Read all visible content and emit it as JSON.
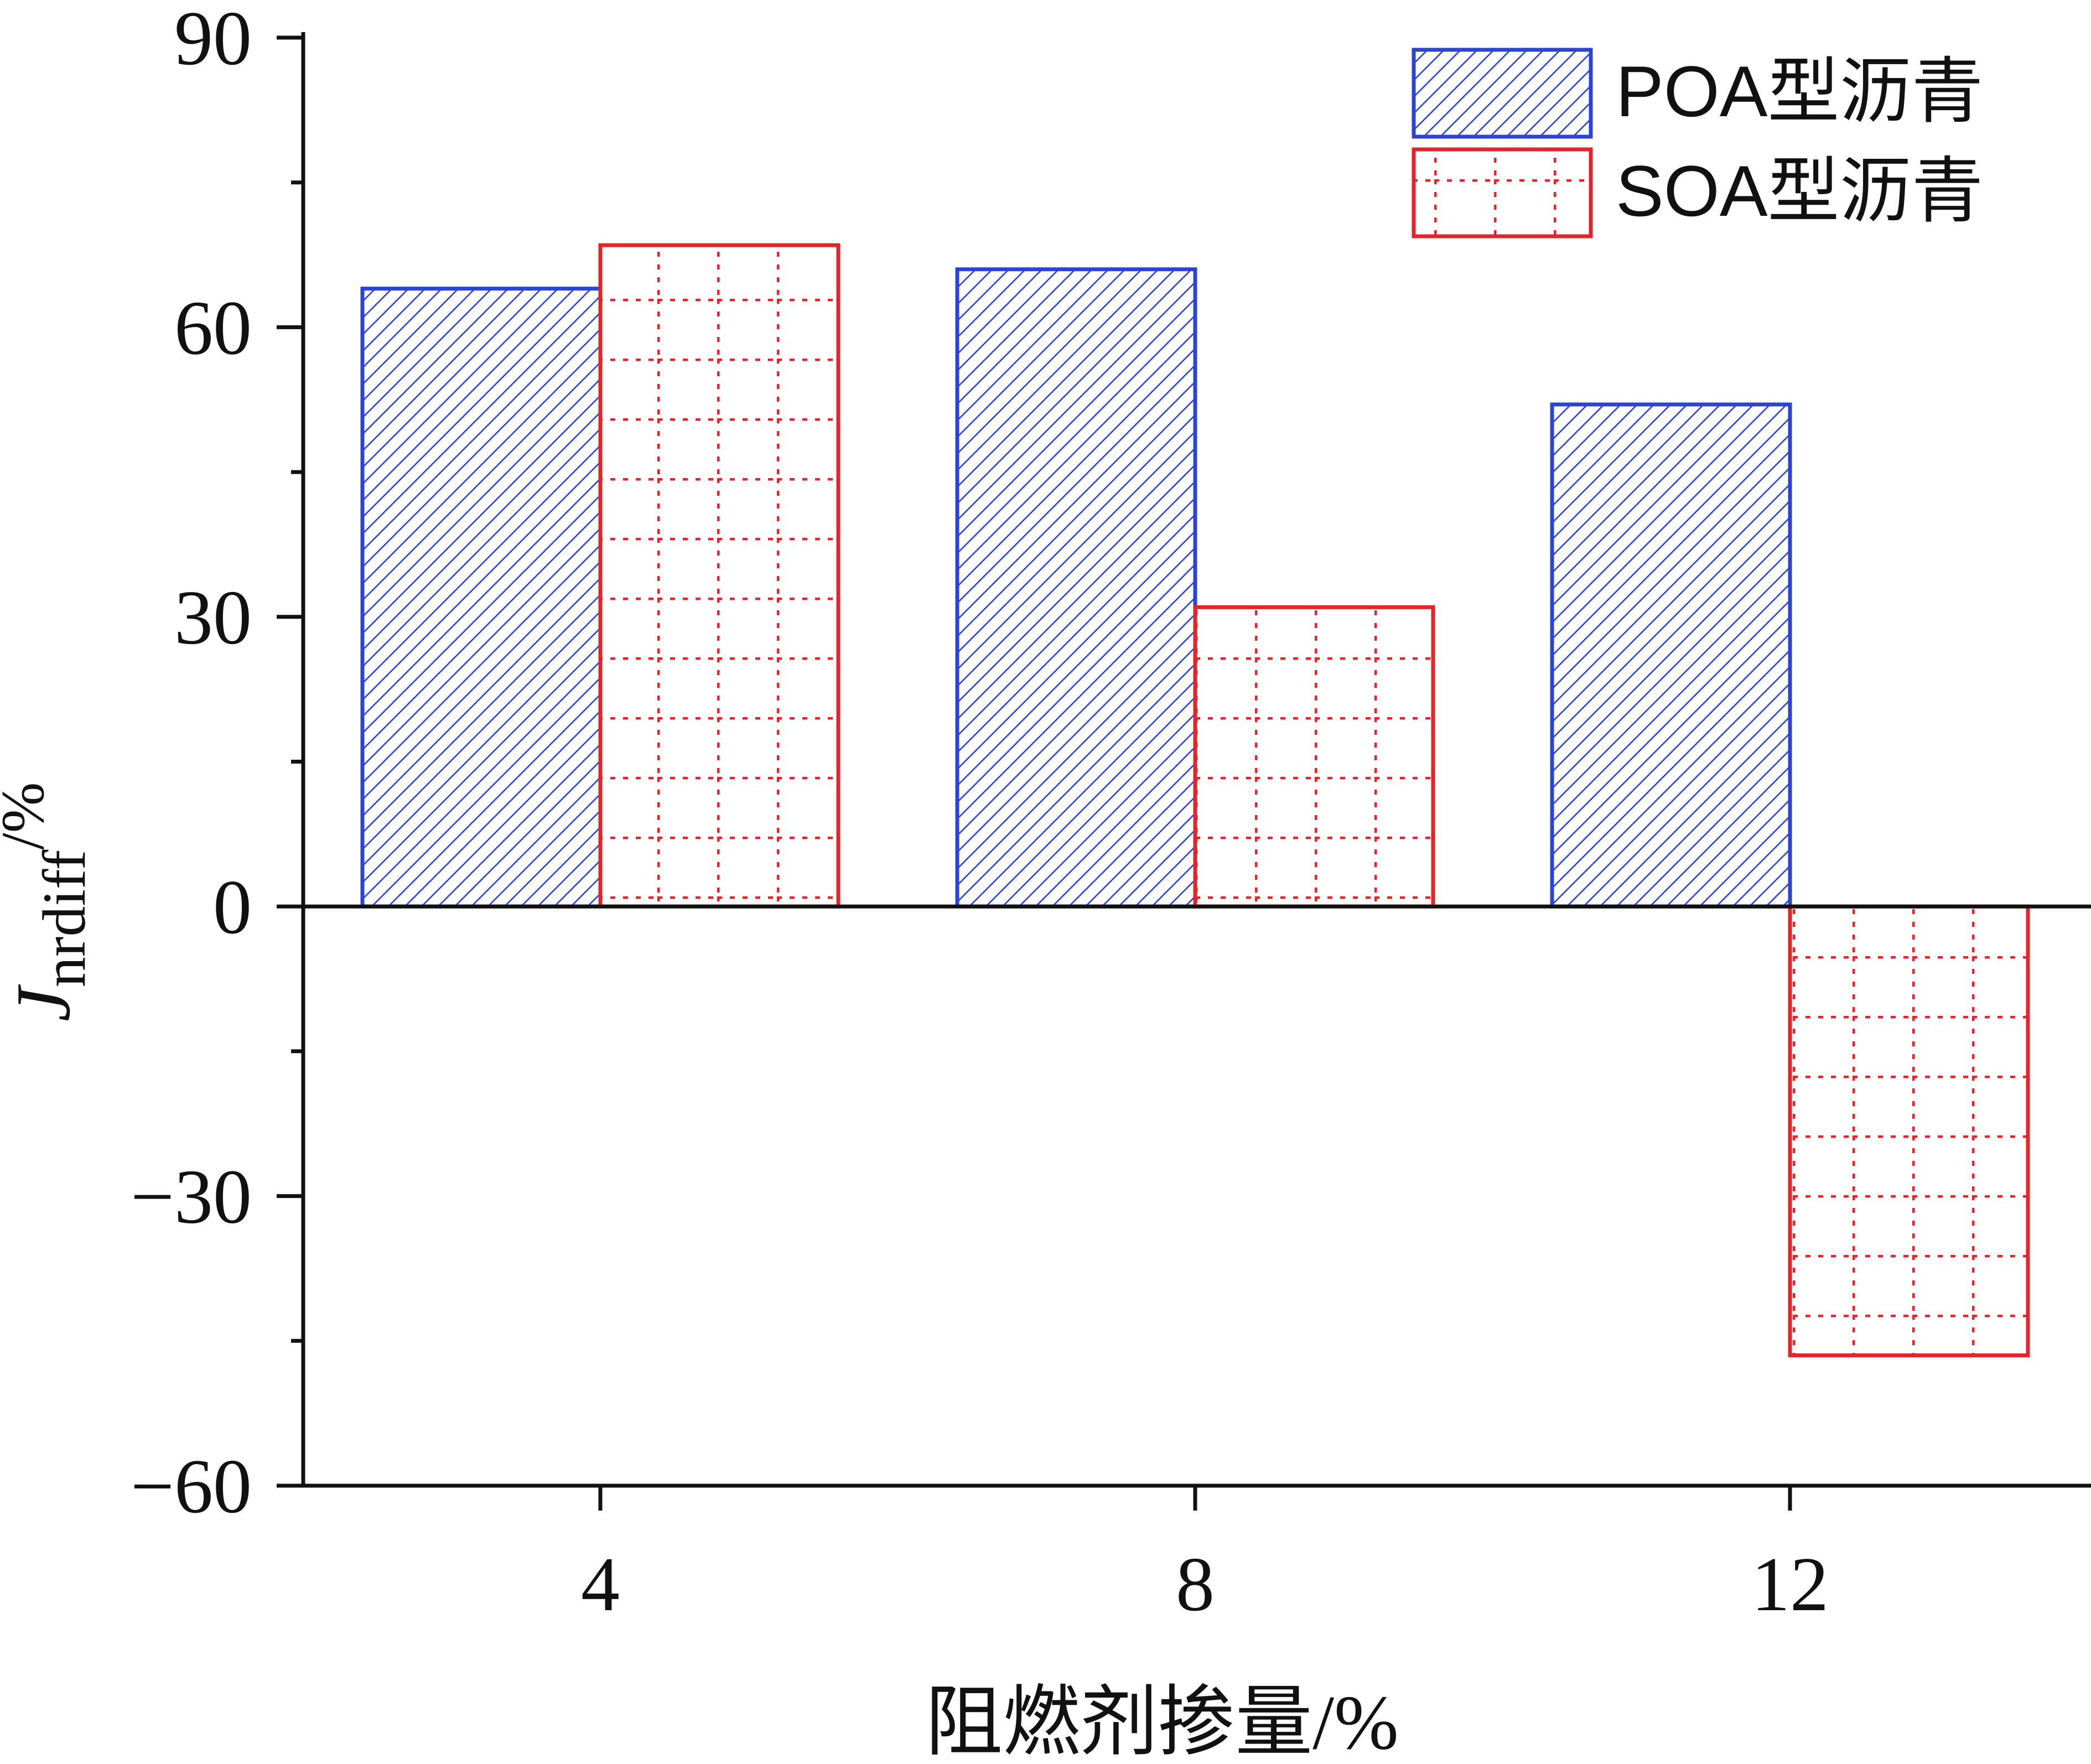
{
  "chart_data": {
    "type": "bar",
    "title": "",
    "xlabel": "阻燃剂掺量/%",
    "ylabel": {
      "main": "J",
      "subscript": "nrdiff",
      "unit": "/%"
    },
    "categories": [
      "4",
      "8",
      "12"
    ],
    "series": [
      {
        "name": "POA型沥青",
        "values": [
          64,
          66,
          52
        ],
        "color": "#2b44d6",
        "pattern": "diagonal-hatch"
      },
      {
        "name": "SOA型沥青",
        "values": [
          68.5,
          31,
          -46.5
        ],
        "color": "#e0262b",
        "pattern": "dotted-grid"
      }
    ],
    "ylim": [
      -60,
      90
    ],
    "yticks": [
      -60,
      -30,
      0,
      30,
      60,
      90
    ],
    "yticklabels": [
      "−60",
      "−30",
      "0",
      "30",
      "60",
      "90"
    ],
    "legend": "top-right",
    "grid": false
  }
}
